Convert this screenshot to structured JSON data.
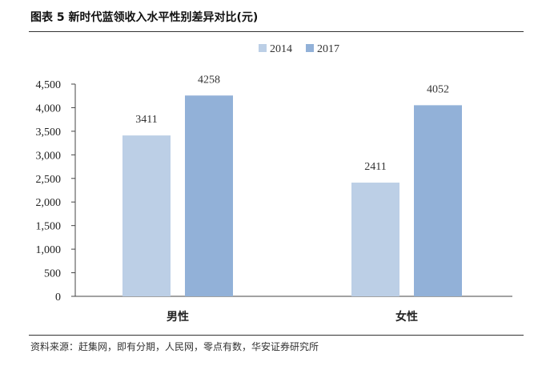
{
  "header": {
    "title": "图表 5  新时代蓝领收入水平性别差异对比(元)"
  },
  "footer": {
    "source": "资料来源：赶集网，即有分期，人民网，零点有数，华安证券研究所"
  },
  "chart_data": {
    "type": "bar",
    "categories": [
      "男性",
      "女性"
    ],
    "series": [
      {
        "name": "2014",
        "values": [
          3411,
          2411
        ],
        "color": "#bccfe6"
      },
      {
        "name": "2017",
        "values": [
          4258,
          4052
        ],
        "color": "#92b1d8"
      }
    ],
    "ylim": [
      0,
      4500
    ],
    "yticks": [
      0,
      500,
      1000,
      1500,
      2000,
      2500,
      3000,
      3500,
      4000,
      4500
    ],
    "ytick_labels": [
      "0",
      "500",
      "1,000",
      "1,500",
      "2,000",
      "2,500",
      "3,000",
      "3,500",
      "4,000",
      "4,500"
    ],
    "legend_position": "top-center",
    "grid": false,
    "data_labels": true
  }
}
